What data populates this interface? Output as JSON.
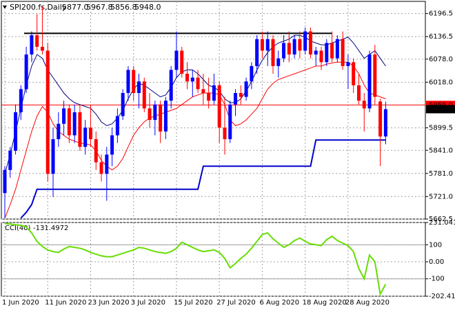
{
  "chart_data": [
    {
      "type": "candlestick",
      "title": "SPI200.fs,Daily",
      "ohlc_labels": [
        "5877.0",
        "5967.8",
        "5856.8",
        "5948.0"
      ],
      "categories": [
        "1 Jun 2020",
        null,
        null,
        null,
        null,
        null,
        null,
        null,
        "11 Jun 2020",
        null,
        null,
        null,
        null,
        null,
        null,
        null,
        "23 Jun 2020",
        null,
        null,
        null,
        null,
        null,
        null,
        null,
        "3 Jul 2020",
        null,
        null,
        null,
        null,
        null,
        null,
        null,
        "15 Jul 2020",
        null,
        null,
        null,
        null,
        null,
        null,
        null,
        "27 Jul 2020",
        null,
        null,
        null,
        null,
        null,
        null,
        null,
        "6 Aug 2020",
        null,
        null,
        null,
        null,
        null,
        null,
        null,
        "18 Aug 2020",
        null,
        null,
        null,
        null,
        null,
        null,
        null,
        "28 Aug 2020",
        null,
        null,
        null,
        null,
        null,
        null,
        null
      ],
      "open": [
        5730,
        5790,
        5840,
        5940,
        6000,
        6090,
        6140,
        6110,
        6100,
        5780,
        5870,
        5910,
        5950,
        5880,
        5940,
        5850,
        5900,
        5870,
        5810,
        5780,
        5830,
        5880,
        5930,
        5990,
        6050,
        5990,
        6020,
        5950,
        5920,
        5960,
        5890,
        5970,
        6050,
        6100,
        6040,
        6020,
        6030,
        6000,
        5990,
        5970,
        6010,
        5900,
        5870,
        5960,
        5990,
        5980,
        6020,
        6060,
        6130,
        6100,
        6130,
        6060,
        6080,
        6120,
        6090,
        6130,
        6100,
        6150,
        6090,
        6100,
        6070,
        6120,
        6080,
        6130,
        6060,
        6070,
        6010,
        5970,
        5950,
        6090,
        5968,
        5877
      ],
      "high": [
        5800,
        5850,
        5960,
        6010,
        6110,
        6150,
        6195,
        6215,
        6120,
        5900,
        5940,
        5970,
        5960,
        5960,
        5960,
        5920,
        5960,
        5890,
        5830,
        5850,
        5900,
        5950,
        6000,
        6060,
        6060,
        6040,
        6030,
        5990,
        5970,
        5970,
        5980,
        6060,
        6150,
        6110,
        6070,
        6050,
        6050,
        6040,
        6030,
        6040,
        6020,
        5980,
        5970,
        6000,
        6010,
        6030,
        6070,
        6140,
        6150,
        6150,
        6140,
        6100,
        6140,
        6150,
        6140,
        6150,
        6160,
        6160,
        6110,
        6110,
        6130,
        6150,
        6140,
        6150,
        6090,
        6080,
        6040,
        5990,
        6100,
        6115,
        5975,
        5967.8
      ],
      "low": [
        5665,
        5770,
        5830,
        5920,
        5990,
        6070,
        6100,
        6090,
        5760,
        5720,
        5850,
        5880,
        5860,
        5860,
        5840,
        5830,
        5850,
        5790,
        5760,
        5710,
        5800,
        5860,
        5920,
        5970,
        5970,
        5950,
        5940,
        5900,
        5880,
        5860,
        5870,
        5950,
        6030,
        6030,
        6000,
        5980,
        5990,
        5960,
        5950,
        5960,
        5860,
        5830,
        5860,
        5930,
        5960,
        5970,
        6000,
        6040,
        6080,
        6060,
        6040,
        6030,
        6070,
        6070,
        6080,
        6080,
        6090,
        6080,
        6060,
        6050,
        6060,
        6070,
        6070,
        6050,
        6000,
        5990,
        5960,
        5890,
        5940,
        5960,
        5800,
        5856.8
      ],
      "close": [
        5790,
        5840,
        5940,
        6000,
        6090,
        6140,
        6110,
        6100,
        5780,
        5870,
        5910,
        5950,
        5880,
        5940,
        5850,
        5900,
        5870,
        5810,
        5780,
        5830,
        5880,
        5930,
        5990,
        6050,
        5990,
        6020,
        5950,
        5920,
        5960,
        5890,
        5970,
        6050,
        6100,
        6040,
        6020,
        6030,
        6000,
        5990,
        5970,
        6010,
        5900,
        5870,
        5960,
        5990,
        5980,
        6020,
        6060,
        6130,
        6100,
        6130,
        6060,
        6080,
        6120,
        6090,
        6130,
        6100,
        6150,
        6090,
        6100,
        6070,
        6120,
        6080,
        6130,
        6060,
        6070,
        6010,
        5970,
        5950,
        6090,
        5980,
        5877,
        5948
      ],
      "up_color": "#0000ff",
      "down_color": "#ff0000",
      "series": [
        {
          "color": "#ff0000",
          "width": 1,
          "values": [
            5665,
            5700,
            5740,
            5790,
            5840,
            5890,
            5930,
            5955,
            5940,
            5910,
            5890,
            5880,
            5870,
            5865,
            5860,
            5858,
            5855,
            5840,
            5815,
            5800,
            5790,
            5800,
            5820,
            5850,
            5880,
            5900,
            5915,
            5925,
            5930,
            5935,
            5940,
            5945,
            5950,
            5960,
            5970,
            5980,
            5985,
            5990,
            5990,
            5990,
            5985,
            5960,
            5920,
            5905,
            5910,
            5920,
            5935,
            5950,
            5975,
            6000,
            6015,
            6025,
            6030,
            6035,
            6040,
            6045,
            6050,
            6055,
            6060,
            6060,
            6065,
            6068,
            6070,
            6070,
            6070,
            6060,
            6040,
            6010,
            5990,
            5985,
            5980,
            5975
          ]
        },
        {
          "color": "#000080",
          "width": 1,
          "values": [
            5780,
            5830,
            5890,
            5950,
            6010,
            6060,
            6090,
            6080,
            6050,
            6030,
            6010,
            5990,
            5975,
            5965,
            5960,
            5955,
            5950,
            5935,
            5915,
            5905,
            5910,
            5925,
            5945,
            5975,
            6000,
            6015,
            6010,
            6000,
            5990,
            5980,
            5985,
            6005,
            6030,
            6045,
            6050,
            6050,
            6040,
            6025,
            6010,
            6005,
            5995,
            5975,
            5965,
            5965,
            5975,
            5995,
            6020,
            6050,
            6075,
            6095,
            6110,
            6120,
            6125,
            6130,
            6140,
            6140,
            6135,
            6125,
            6120,
            6115,
            6115,
            6120,
            6125,
            6130,
            6135,
            6120,
            6100,
            6080,
            6090,
            6100,
            6080,
            6060
          ]
        },
        {
          "color": "#0000cc",
          "width": 2,
          "values": [
            null,
            null,
            null,
            5665,
            5680,
            5700,
            5740,
            5740,
            5740,
            5740,
            5740,
            5740,
            5740,
            5740,
            5740,
            5740,
            5740,
            5740,
            5740,
            5740,
            5740,
            5740,
            5740,
            5740,
            5740,
            5740,
            5740,
            5740,
            5740,
            5740,
            5740,
            5740,
            5740,
            5740,
            5740,
            5740,
            5740,
            5800,
            5800,
            5800,
            5800,
            5800,
            5800,
            5800,
            5800,
            5800,
            5800,
            5800,
            5800,
            5800,
            5800,
            5800,
            5800,
            5800,
            5800,
            5800,
            5800,
            5800,
            5868,
            5868,
            5868,
            5868,
            5868,
            5868,
            5868,
            5868,
            5868,
            5868,
            5868,
            5868,
            5868,
            5868
          ]
        }
      ],
      "levels": [
        {
          "value": 6145,
          "color": "#000000"
        },
        {
          "value": 5959,
          "label": "5959.0",
          "color": "#ff0000"
        }
      ],
      "ylim": [
        5662.5,
        6228
      ],
      "yticks": [
        6196.5,
        6136.5,
        {
          "value": 6078,
          "label": "6078.0"
        },
        {
          "value": 6018,
          "label": "6018.0"
        },
        5899.5,
        {
          "value": 5841,
          "label": "5841.0"
        },
        {
          "value": 5781,
          "label": "5781.0"
        },
        {
          "value": 5721,
          "label": "5721.0"
        },
        5662.5
      ],
      "grid": true
    },
    {
      "type": "line",
      "title": "CCI(40)",
      "series": [
        {
          "color": "#66dd00",
          "width": 2,
          "values": [
            225,
            222,
            218,
            215,
            205,
            170,
            120,
            90,
            70,
            60,
            55,
            75,
            90,
            85,
            80,
            70,
            55,
            45,
            35,
            30,
            30,
            40,
            50,
            60,
            70,
            85,
            80,
            70,
            60,
            55,
            50,
            60,
            80,
            115,
            100,
            85,
            70,
            60,
            65,
            70,
            55,
            20,
            -35,
            -10,
            20,
            45,
            80,
            120,
            160,
            170,
            135,
            110,
            85,
            100,
            125,
            140,
            120,
            105,
            100,
            95,
            130,
            150,
            125,
            110,
            95,
            60,
            -40,
            -100,
            40,
            0,
            -190,
            -131.4972
          ]
        }
      ],
      "levels": [
        100,
        -100
      ],
      "ylim": [
        -202.418,
        231.0417
      ],
      "yticks": [
        231.0417,
        100,
        {
          "value": 0,
          "label": "0.00"
        },
        -100,
        -202.418
      ],
      "grid": true
    }
  ]
}
